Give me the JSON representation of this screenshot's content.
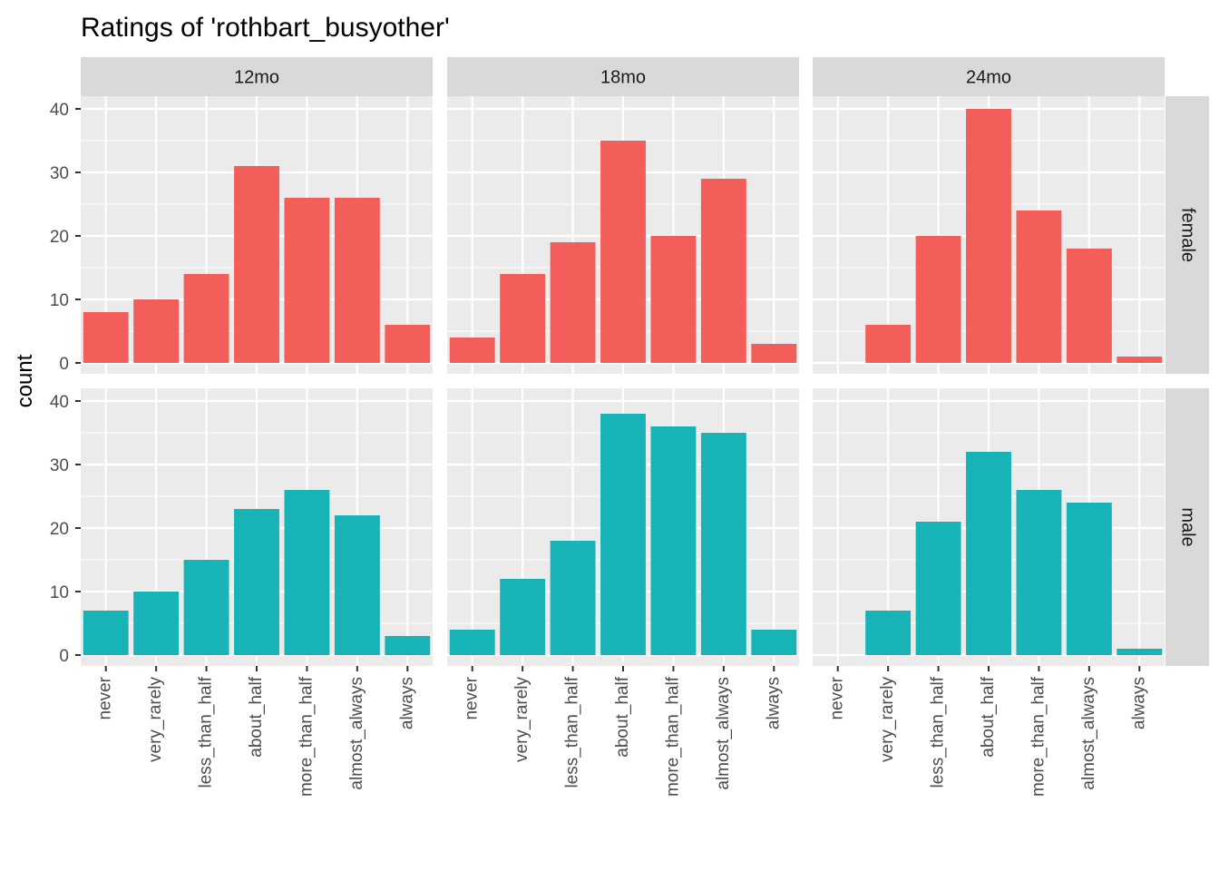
{
  "chart_data": {
    "type": "bar",
    "title": "Ratings of 'rothbart_busyother'",
    "ylabel": "count",
    "xlabel": "",
    "ylim": [
      0,
      42
    ],
    "yticks": [
      0,
      10,
      20,
      30,
      40
    ],
    "categories": [
      "never",
      "very_rarely",
      "less_than_half",
      "about_half",
      "more_than_half",
      "almost_always",
      "always"
    ],
    "col_facets": [
      "12mo",
      "18mo",
      "24mo"
    ],
    "row_facets": [
      "female",
      "male"
    ],
    "colors": {
      "female": "#F35E5A",
      "male": "#17B3B7",
      "panel_bg": "#EBEBEB",
      "strip_bg": "#D9D9D9",
      "grid": "#FFFFFF"
    },
    "grid": true,
    "panels": [
      {
        "col": "12mo",
        "row": "female",
        "values": [
          8,
          10,
          14,
          31,
          26,
          26,
          6
        ]
      },
      {
        "col": "18mo",
        "row": "female",
        "values": [
          4,
          14,
          19,
          35,
          20,
          29,
          3
        ]
      },
      {
        "col": "24mo",
        "row": "female",
        "values": [
          0,
          6,
          20,
          40,
          24,
          18,
          1
        ]
      },
      {
        "col": "12mo",
        "row": "male",
        "values": [
          7,
          10,
          15,
          23,
          26,
          22,
          3
        ]
      },
      {
        "col": "18mo",
        "row": "male",
        "values": [
          4,
          12,
          18,
          38,
          36,
          35,
          4
        ]
      },
      {
        "col": "24mo",
        "row": "male",
        "values": [
          0,
          7,
          21,
          32,
          26,
          24,
          1
        ]
      }
    ]
  }
}
